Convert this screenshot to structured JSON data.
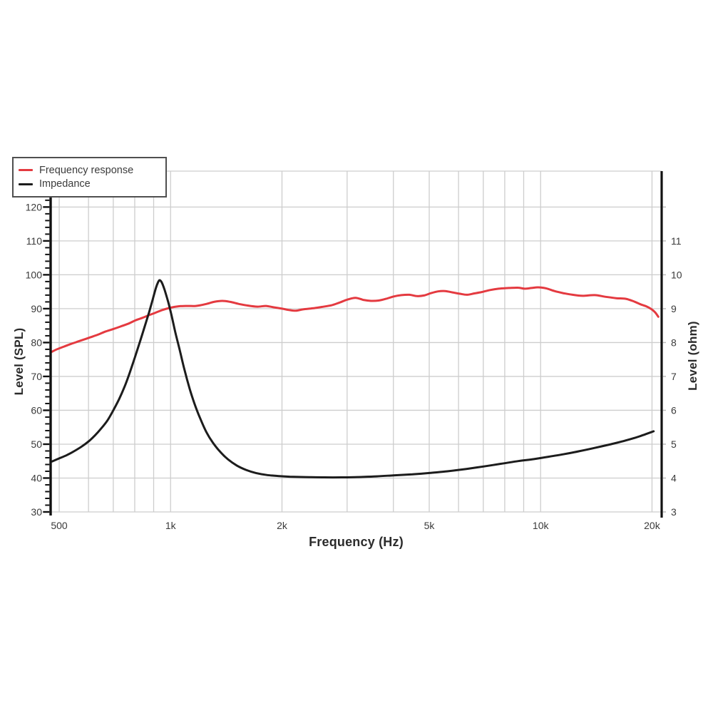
{
  "chart_data": {
    "type": "line",
    "title": "",
    "xlabel": "Frequency (Hz)",
    "ylabel_left": "Level (SPL)",
    "ylabel_right": "Level (ohm)",
    "x_scale": "log",
    "xlim": [
      474,
      21240
    ],
    "ylim_left": [
      30,
      130.6
    ],
    "ylim_right": [
      3,
      13.06
    ],
    "grid": true,
    "legend_position": "top-left",
    "colors": {
      "frequency_response": "#e43a40",
      "impedance": "#1c1c1c",
      "grid": "#cdcdcd",
      "spine": "#111111",
      "tick_label": "#3a3a3a"
    },
    "x_ticks": [
      {
        "value": 500,
        "label": "500"
      },
      {
        "value": 1000,
        "label": "1k"
      },
      {
        "value": 2000,
        "label": "2k"
      },
      {
        "value": 5000,
        "label": "5k"
      },
      {
        "value": 10000,
        "label": "10k"
      },
      {
        "value": 20000,
        "label": "20k"
      }
    ],
    "x_gridlines": [
      500,
      600,
      700,
      800,
      900,
      1000,
      2000,
      3000,
      4000,
      5000,
      6000,
      7000,
      8000,
      9000,
      10000,
      20000
    ],
    "y_ticks_left": [
      30,
      40,
      50,
      60,
      70,
      80,
      90,
      100,
      110,
      120
    ],
    "y_minor_step_left": 2,
    "y_ticks_right": [
      3,
      4,
      5,
      6,
      7,
      8,
      9,
      10,
      11
    ],
    "legend": [
      {
        "label": "Frequency response",
        "color": "#e43a40"
      },
      {
        "label": "Impedance",
        "color": "#1c1c1c"
      }
    ],
    "series": [
      {
        "name": "Frequency response",
        "axis": "left",
        "unit": "dB SPL",
        "color": "#e43a40",
        "points": [
          [
            478,
            77.3
          ],
          [
            495,
            78.1
          ],
          [
            515,
            78.8
          ],
          [
            535,
            79.5
          ],
          [
            555,
            80.1
          ],
          [
            580,
            80.8
          ],
          [
            605,
            81.5
          ],
          [
            635,
            82.3
          ],
          [
            665,
            83.2
          ],
          [
            700,
            84.0
          ],
          [
            735,
            84.8
          ],
          [
            770,
            85.6
          ],
          [
            805,
            86.6
          ],
          [
            840,
            87.3
          ],
          [
            875,
            88.1
          ],
          [
            910,
            88.8
          ],
          [
            950,
            89.6
          ],
          [
            1000,
            90.3
          ],
          [
            1050,
            90.7
          ],
          [
            1110,
            90.8
          ],
          [
            1170,
            90.8
          ],
          [
            1240,
            91.3
          ],
          [
            1310,
            92.0
          ],
          [
            1380,
            92.3
          ],
          [
            1450,
            92.0
          ],
          [
            1530,
            91.4
          ],
          [
            1620,
            90.9
          ],
          [
            1720,
            90.6
          ],
          [
            1810,
            90.8
          ],
          [
            1900,
            90.4
          ],
          [
            2000,
            90.0
          ],
          [
            2090,
            89.6
          ],
          [
            2180,
            89.4
          ],
          [
            2280,
            89.8
          ],
          [
            2420,
            90.1
          ],
          [
            2560,
            90.5
          ],
          [
            2720,
            91.0
          ],
          [
            2860,
            91.8
          ],
          [
            3010,
            92.7
          ],
          [
            3160,
            93.2
          ],
          [
            3320,
            92.6
          ],
          [
            3480,
            92.3
          ],
          [
            3650,
            92.4
          ],
          [
            3820,
            92.9
          ],
          [
            4010,
            93.6
          ],
          [
            4210,
            94.0
          ],
          [
            4420,
            94.1
          ],
          [
            4630,
            93.7
          ],
          [
            4840,
            93.9
          ],
          [
            5060,
            94.6
          ],
          [
            5280,
            95.1
          ],
          [
            5520,
            95.2
          ],
          [
            5780,
            94.8
          ],
          [
            6050,
            94.4
          ],
          [
            6330,
            94.1
          ],
          [
            6620,
            94.5
          ],
          [
            6930,
            94.9
          ],
          [
            7300,
            95.5
          ],
          [
            7700,
            95.9
          ],
          [
            8200,
            96.1
          ],
          [
            8700,
            96.2
          ],
          [
            9050,
            95.9
          ],
          [
            9450,
            96.1
          ],
          [
            9850,
            96.3
          ],
          [
            10350,
            96.0
          ],
          [
            10900,
            95.2
          ],
          [
            11500,
            94.6
          ],
          [
            12200,
            94.1
          ],
          [
            13000,
            93.8
          ],
          [
            14000,
            94.0
          ],
          [
            15000,
            93.5
          ],
          [
            16000,
            93.1
          ],
          [
            17000,
            92.9
          ],
          [
            17900,
            92.1
          ],
          [
            18600,
            91.3
          ],
          [
            19300,
            90.7
          ],
          [
            19900,
            89.9
          ],
          [
            20400,
            88.9
          ],
          [
            20800,
            87.6
          ]
        ]
      },
      {
        "name": "Impedance",
        "axis": "right",
        "unit": "ohm",
        "color": "#1c1c1c",
        "points": [
          [
            478,
            4.49
          ],
          [
            500,
            4.58
          ],
          [
            525,
            4.68
          ],
          [
            550,
            4.8
          ],
          [
            575,
            4.93
          ],
          [
            600,
            5.08
          ],
          [
            625,
            5.26
          ],
          [
            650,
            5.47
          ],
          [
            675,
            5.7
          ],
          [
            700,
            6.0
          ],
          [
            725,
            6.32
          ],
          [
            750,
            6.68
          ],
          [
            775,
            7.1
          ],
          [
            800,
            7.55
          ],
          [
            825,
            8.0
          ],
          [
            850,
            8.45
          ],
          [
            875,
            8.9
          ],
          [
            895,
            9.28
          ],
          [
            912,
            9.6
          ],
          [
            925,
            9.78
          ],
          [
            935,
            9.84
          ],
          [
            948,
            9.76
          ],
          [
            963,
            9.56
          ],
          [
            985,
            9.2
          ],
          [
            1005,
            8.82
          ],
          [
            1030,
            8.3
          ],
          [
            1060,
            7.75
          ],
          [
            1090,
            7.2
          ],
          [
            1125,
            6.65
          ],
          [
            1160,
            6.2
          ],
          [
            1200,
            5.78
          ],
          [
            1250,
            5.35
          ],
          [
            1300,
            5.05
          ],
          [
            1360,
            4.78
          ],
          [
            1430,
            4.55
          ],
          [
            1510,
            4.37
          ],
          [
            1600,
            4.24
          ],
          [
            1700,
            4.15
          ],
          [
            1820,
            4.09
          ],
          [
            1950,
            4.06
          ],
          [
            2100,
            4.04
          ],
          [
            2300,
            4.03
          ],
          [
            2600,
            4.02
          ],
          [
            2900,
            4.02
          ],
          [
            3200,
            4.03
          ],
          [
            3600,
            4.05
          ],
          [
            4000,
            4.08
          ],
          [
            4500,
            4.11
          ],
          [
            5000,
            4.15
          ],
          [
            5600,
            4.2
          ],
          [
            6300,
            4.27
          ],
          [
            7000,
            4.34
          ],
          [
            7800,
            4.42
          ],
          [
            8700,
            4.5
          ],
          [
            9600,
            4.56
          ],
          [
            10500,
            4.63
          ],
          [
            11500,
            4.7
          ],
          [
            12700,
            4.79
          ],
          [
            14000,
            4.89
          ],
          [
            15500,
            5.0
          ],
          [
            17000,
            5.11
          ],
          [
            18500,
            5.23
          ],
          [
            20200,
            5.38
          ]
        ]
      }
    ]
  }
}
